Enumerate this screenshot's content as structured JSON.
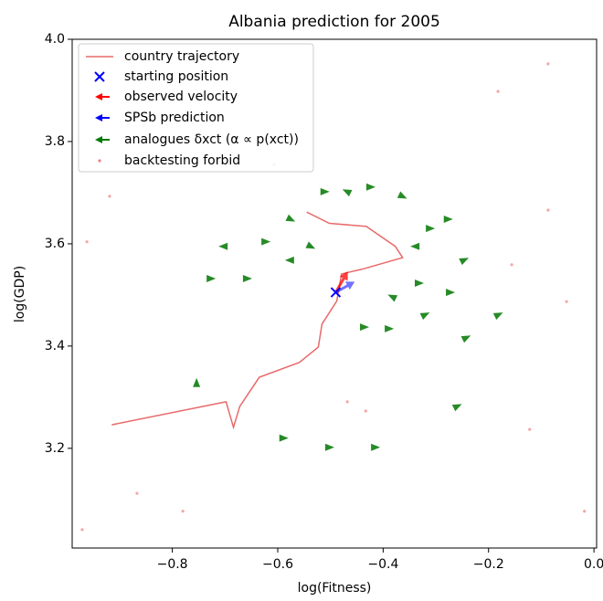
{
  "chart_data": {
    "type": "trajectory",
    "title": "Albania prediction for 2005",
    "x_label": "log(Fitness)",
    "y_label": "log(GDP)",
    "xlim": [
      -0.99,
      0.005
    ],
    "ylim": [
      3.005,
      4.0
    ],
    "xticks": [
      {
        "value": -0.8,
        "label": "−0.8"
      },
      {
        "value": -0.6,
        "label": "−0.6"
      },
      {
        "value": -0.4,
        "label": "−0.4"
      },
      {
        "value": -0.2,
        "label": "−0.2"
      },
      {
        "value": 0.0,
        "label": "0.0"
      }
    ],
    "yticks": [
      3.2,
      3.4,
      3.6,
      3.8,
      {
        "value": 4.0,
        "label": "4.0"
      }
    ],
    "trajectory": {
      "name": "country trajectory",
      "color": "#e86a6a",
      "x": [
        -0.915,
        -0.698,
        -0.684,
        -0.672,
        -0.635,
        -0.559,
        -0.523,
        -0.516,
        -0.488,
        -0.479,
        -0.441,
        -0.363,
        -0.377,
        -0.432,
        -0.502,
        -0.545
      ],
      "y": [
        3.246,
        3.291,
        3.241,
        3.282,
        3.339,
        3.368,
        3.398,
        3.443,
        3.488,
        3.541,
        3.55,
        3.573,
        3.595,
        3.634,
        3.64,
        3.662
      ]
    },
    "start": {
      "name": "starting position",
      "color": "#0000ff",
      "x": -0.49,
      "y": 3.505
    },
    "observed_velocity": {
      "name": "observed velocity",
      "color": "#ff0000",
      "dx": 0.023,
      "dy": 0.041
    },
    "prediction": {
      "name": "SPSb prediction",
      "color": "#0000ff",
      "dx": 0.036,
      "dy": 0.021
    },
    "analogues": {
      "name": "analogues δxct (α ∝ p(xct))",
      "color": "#007700",
      "x": [
        -0.576,
        -0.624,
        -0.702,
        -0.728,
        -0.659,
        -0.576,
        -0.538,
        -0.512,
        -0.468,
        -0.425,
        -0.364,
        -0.312,
        -0.278,
        -0.338,
        -0.247,
        -0.333,
        -0.274,
        -0.382,
        -0.321,
        -0.39,
        -0.437,
        -0.243,
        -0.182,
        -0.754,
        -0.503,
        -0.416,
        -0.59,
        -0.26
      ],
      "y": [
        3.648,
        3.604,
        3.595,
        3.532,
        3.532,
        3.568,
        3.595,
        3.702,
        3.702,
        3.711,
        3.693,
        3.63,
        3.648,
        3.595,
        3.568,
        3.523,
        3.505,
        3.496,
        3.461,
        3.434,
        3.437,
        3.416,
        3.461,
        3.327,
        3.202,
        3.202,
        3.22,
        3.282
      ],
      "dx": [
        0.02,
        0.02,
        -0.02,
        0.02,
        0.02,
        -0.02,
        0.02,
        0.02,
        -0.02,
        0.02,
        0.02,
        0.02,
        0.02,
        -0.02,
        0.02,
        0.02,
        0.02,
        -0.02,
        0.02,
        0.02,
        0.02,
        0.02,
        0.02,
        0.0,
        0.02,
        0.02,
        0.02,
        0.02
      ],
      "dy": [
        -0.01,
        0.0,
        0.0,
        0.0,
        0.0,
        0.0,
        -0.01,
        0.0,
        0.01,
        0.0,
        -0.01,
        0.0,
        0.0,
        0.0,
        0.01,
        0.0,
        0.0,
        0.01,
        0.01,
        0.0,
        0.0,
        0.01,
        0.01,
        0.02,
        0.0,
        0.0,
        0.0,
        0.01
      ]
    },
    "backtesting": {
      "name": "backtesting forbid",
      "color": "#f08080",
      "x": [
        -0.962,
        -0.919,
        -0.156,
        -0.087,
        -0.052,
        -0.867,
        -0.78,
        -0.468,
        -0.433,
        -0.122,
        -0.971,
        -0.018,
        -0.607,
        -0.182,
        -0.087
      ],
      "y": [
        3.604,
        3.693,
        3.559,
        3.666,
        3.487,
        3.112,
        3.077,
        3.291,
        3.273,
        3.237,
        3.041,
        3.077,
        3.755,
        3.898,
        3.952
      ]
    }
  }
}
